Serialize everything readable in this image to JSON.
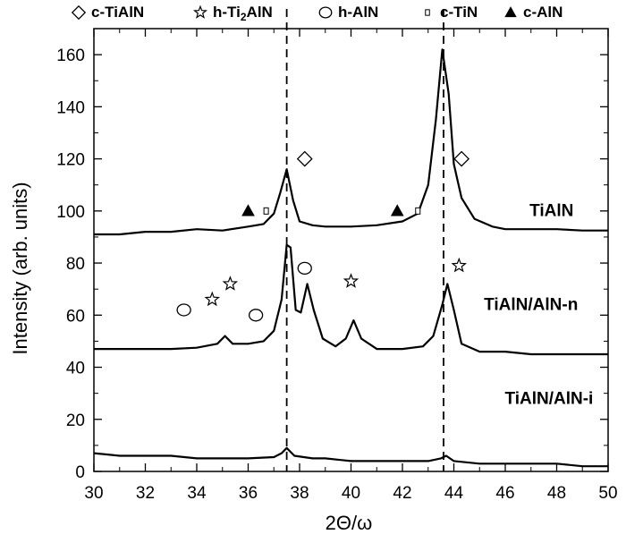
{
  "chart_data": {
    "type": "line",
    "xlabel": "2Θ/ω",
    "ylabel": "Intensity (arb. units)",
    "xlim": [
      30,
      50
    ],
    "ylim": [
      0,
      170
    ],
    "xticks": [
      30,
      32,
      34,
      36,
      38,
      40,
      42,
      44,
      46,
      48,
      50
    ],
    "yticks": [
      0,
      20,
      40,
      60,
      80,
      100,
      120,
      140,
      160
    ],
    "xtick_labels": [
      "30",
      "32",
      "34",
      "36",
      "38",
      "40",
      "42",
      "44",
      "46",
      "48",
      "50"
    ],
    "ytick_labels": [
      "0",
      "20",
      "40",
      "60",
      "80",
      "100",
      "120",
      "140",
      "160"
    ],
    "grid": false,
    "legend": {
      "placement": "top",
      "entries": [
        {
          "symbol": "diamond",
          "label": "c-TiAlN"
        },
        {
          "symbol": "star",
          "label_main": "h-Ti",
          "label_sub": "2",
          "label_tail": "AlN",
          "label": "h-Ti2AlN"
        },
        {
          "symbol": "circle",
          "label": "h-AlN"
        },
        {
          "symbol": "square",
          "label": "c-TiN"
        },
        {
          "symbol": "triangle",
          "label": "c-AlN"
        }
      ]
    },
    "reference_lines_x": [
      37.5,
      43.6
    ],
    "series": [
      {
        "name": "TiAlN",
        "label_at": [
          47.8,
          98
        ],
        "points": [
          [
            30,
            91
          ],
          [
            31,
            91
          ],
          [
            32,
            92
          ],
          [
            33,
            92
          ],
          [
            34,
            93
          ],
          [
            35,
            92.5
          ],
          [
            36,
            94
          ],
          [
            36.6,
            95
          ],
          [
            37.0,
            99
          ],
          [
            37.25,
            107
          ],
          [
            37.5,
            116
          ],
          [
            37.75,
            104
          ],
          [
            38.0,
            96
          ],
          [
            38.5,
            94.5
          ],
          [
            39,
            94
          ],
          [
            40,
            94
          ],
          [
            41,
            94.5
          ],
          [
            42,
            96
          ],
          [
            42.6,
            99
          ],
          [
            43.0,
            110
          ],
          [
            43.3,
            135
          ],
          [
            43.55,
            162
          ],
          [
            43.8,
            145
          ],
          [
            44.0,
            118
          ],
          [
            44.3,
            105
          ],
          [
            44.8,
            97
          ],
          [
            45.5,
            94
          ],
          [
            46,
            93
          ],
          [
            47,
            93
          ],
          [
            48,
            93
          ],
          [
            49,
            92.5
          ],
          [
            50,
            92.5
          ]
        ]
      },
      {
        "name": "TiAlN/AlN-n",
        "label_at": [
          47.0,
          62
        ],
        "points": [
          [
            30,
            47
          ],
          [
            31,
            47
          ],
          [
            32,
            47
          ],
          [
            33,
            47
          ],
          [
            34,
            47.5
          ],
          [
            34.8,
            49
          ],
          [
            35.1,
            52
          ],
          [
            35.4,
            49
          ],
          [
            36,
            49
          ],
          [
            36.6,
            50
          ],
          [
            37.0,
            54
          ],
          [
            37.3,
            66
          ],
          [
            37.5,
            87
          ],
          [
            37.65,
            86
          ],
          [
            37.85,
            62
          ],
          [
            38.05,
            61
          ],
          [
            38.3,
            72
          ],
          [
            38.55,
            62
          ],
          [
            38.9,
            51
          ],
          [
            39.4,
            48
          ],
          [
            39.8,
            51
          ],
          [
            40.1,
            58
          ],
          [
            40.4,
            51
          ],
          [
            41,
            47
          ],
          [
            42,
            47
          ],
          [
            42.8,
            48
          ],
          [
            43.2,
            52
          ],
          [
            43.55,
            64
          ],
          [
            43.75,
            72
          ],
          [
            44.0,
            62
          ],
          [
            44.3,
            49
          ],
          [
            45,
            46
          ],
          [
            46,
            46
          ],
          [
            47,
            45
          ],
          [
            48,
            45
          ],
          [
            49,
            45
          ],
          [
            50,
            45
          ]
        ]
      },
      {
        "name": "TiAlN/AlN-i",
        "label_at": [
          47.7,
          26
        ],
        "points": [
          [
            30,
            7
          ],
          [
            31,
            6
          ],
          [
            32,
            6
          ],
          [
            33,
            6
          ],
          [
            34,
            5
          ],
          [
            35,
            5
          ],
          [
            36,
            5
          ],
          [
            37,
            5.5
          ],
          [
            37.3,
            7
          ],
          [
            37.5,
            9
          ],
          [
            37.8,
            6
          ],
          [
            38.5,
            5
          ],
          [
            39,
            5
          ],
          [
            40,
            4
          ],
          [
            41,
            4
          ],
          [
            42,
            4
          ],
          [
            43,
            4
          ],
          [
            43.5,
            5
          ],
          [
            43.7,
            6
          ],
          [
            44,
            4
          ],
          [
            45,
            3
          ],
          [
            46,
            3
          ],
          [
            47,
            3
          ],
          [
            48,
            3
          ],
          [
            49,
            2
          ],
          [
            50,
            2
          ]
        ]
      }
    ],
    "markers": [
      {
        "symbol": "diamond",
        "x": 38.2,
        "y": 120
      },
      {
        "symbol": "diamond",
        "x": 44.3,
        "y": 120
      },
      {
        "symbol": "triangle",
        "x": 36.0,
        "y": 100
      },
      {
        "symbol": "triangle",
        "x": 41.8,
        "y": 100
      },
      {
        "symbol": "square",
        "x": 36.7,
        "y": 100
      },
      {
        "symbol": "square",
        "x": 42.6,
        "y": 100
      },
      {
        "symbol": "circle",
        "x": 33.5,
        "y": 62
      },
      {
        "symbol": "circle",
        "x": 36.3,
        "y": 60
      },
      {
        "symbol": "circle",
        "x": 38.2,
        "y": 78
      },
      {
        "symbol": "star",
        "x": 34.6,
        "y": 66
      },
      {
        "symbol": "star",
        "x": 35.3,
        "y": 72
      },
      {
        "symbol": "star",
        "x": 40.0,
        "y": 73
      },
      {
        "symbol": "star",
        "x": 44.2,
        "y": 79
      }
    ]
  }
}
